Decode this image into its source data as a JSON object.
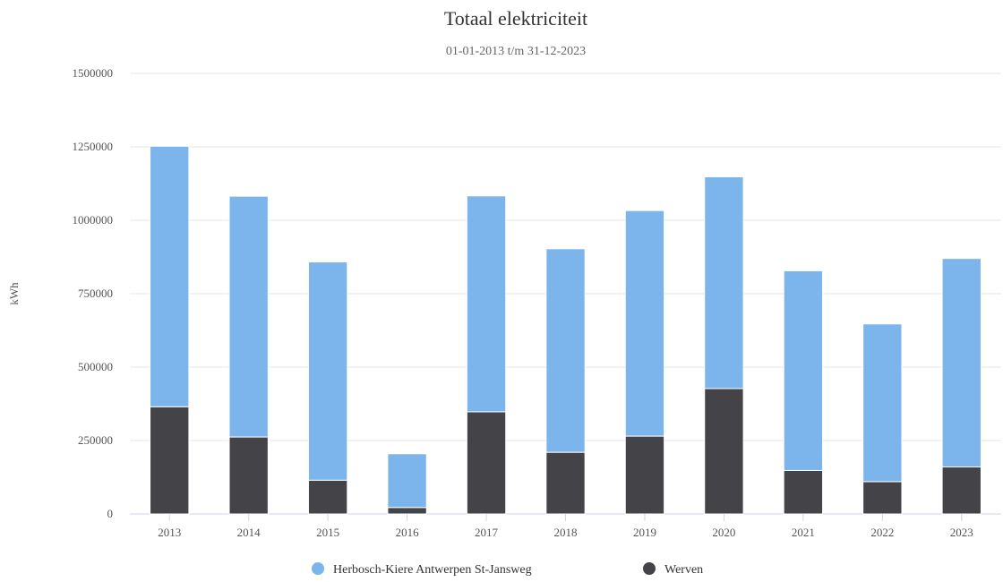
{
  "chart_data": {
    "type": "bar",
    "stacked": true,
    "title": "Totaal elektriciteit",
    "subtitle": "01-01-2013 t/m 31-12-2023",
    "xlabel": "",
    "ylabel": "kWh",
    "ylim": [
      0,
      1500000
    ],
    "yticks": [
      "0",
      "250000",
      "500000",
      "750000",
      "1000000",
      "1250000",
      "1500000"
    ],
    "grid": true,
    "legend_position": "bottom-center",
    "categories": [
      "2013",
      "2014",
      "2015",
      "2016",
      "2017",
      "2018",
      "2019",
      "2020",
      "2021",
      "2022",
      "2023"
    ],
    "series": [
      {
        "name": "Werven",
        "color": "#434348",
        "values": [
          365000,
          262000,
          115000,
          22000,
          348000,
          210000,
          265000,
          427000,
          148000,
          110000,
          160000
        ]
      },
      {
        "name": "Herbosch-Kiere Antwerpen St-Jansweg",
        "color": "#7cb5ec",
        "values": [
          887000,
          820000,
          743000,
          183000,
          735000,
          693000,
          768000,
          721000,
          680000,
          537000,
          710000
        ]
      }
    ],
    "legend": [
      {
        "name": "Herbosch-Kiere Antwerpen St-Jansweg",
        "color": "#7cb5ec"
      },
      {
        "name": "Werven",
        "color": "#434348"
      }
    ]
  }
}
